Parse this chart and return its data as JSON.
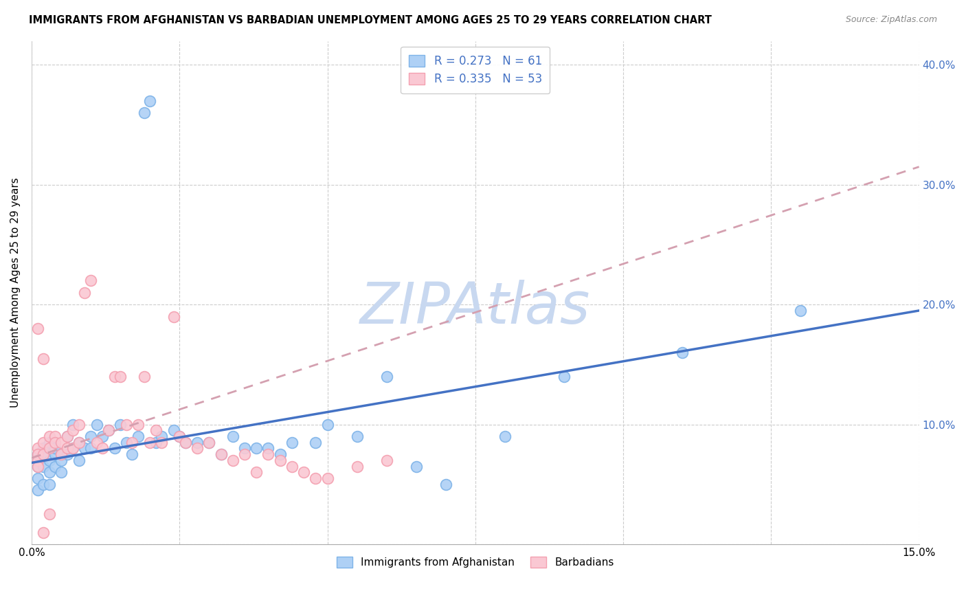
{
  "title": "IMMIGRANTS FROM AFGHANISTAN VS BARBADIAN UNEMPLOYMENT AMONG AGES 25 TO 29 YEARS CORRELATION CHART",
  "source": "Source: ZipAtlas.com",
  "ylabel": "Unemployment Among Ages 25 to 29 years",
  "xlim": [
    0.0,
    0.15
  ],
  "ylim": [
    0.0,
    0.42
  ],
  "xticks": [
    0.0,
    0.025,
    0.05,
    0.075,
    0.1,
    0.125,
    0.15
  ],
  "xtick_labels": [
    "0.0%",
    "",
    "",
    "",
    "",
    "",
    "15.0%"
  ],
  "yticks": [
    0.0,
    0.1,
    0.2,
    0.3,
    0.4
  ],
  "ytick_labels_right": [
    "",
    "10.0%",
    "20.0%",
    "30.0%",
    "40.0%"
  ],
  "blue_color": "#7EB3E8",
  "blue_fill": "#AED0F5",
  "pink_color": "#F4A0B0",
  "pink_fill": "#FAC8D3",
  "trend_blue": "#4472C4",
  "trend_pink": "#D4A0B0",
  "watermark": "ZIPAtlas",
  "watermark_color": "#C8D8F0",
  "legend_R1": "R = 0.273",
  "legend_N1": "N = 61",
  "legend_R2": "R = 0.335",
  "legend_N2": "N = 53",
  "blue_scatter_x": [
    0.001,
    0.001,
    0.001,
    0.001,
    0.002,
    0.002,
    0.002,
    0.002,
    0.003,
    0.003,
    0.003,
    0.003,
    0.004,
    0.004,
    0.004,
    0.005,
    0.005,
    0.005,
    0.006,
    0.006,
    0.007,
    0.007,
    0.008,
    0.008,
    0.009,
    0.01,
    0.01,
    0.011,
    0.012,
    0.013,
    0.014,
    0.015,
    0.016,
    0.017,
    0.018,
    0.019,
    0.02,
    0.021,
    0.022,
    0.024,
    0.025,
    0.026,
    0.028,
    0.03,
    0.032,
    0.034,
    0.036,
    0.038,
    0.04,
    0.042,
    0.044,
    0.048,
    0.05,
    0.055,
    0.06,
    0.065,
    0.07,
    0.08,
    0.09,
    0.11,
    0.13
  ],
  "blue_scatter_y": [
    0.065,
    0.075,
    0.055,
    0.045,
    0.08,
    0.065,
    0.075,
    0.05,
    0.07,
    0.085,
    0.06,
    0.05,
    0.075,
    0.065,
    0.08,
    0.075,
    0.07,
    0.06,
    0.09,
    0.075,
    0.1,
    0.08,
    0.085,
    0.07,
    0.08,
    0.09,
    0.08,
    0.1,
    0.09,
    0.095,
    0.08,
    0.1,
    0.085,
    0.075,
    0.09,
    0.36,
    0.37,
    0.085,
    0.09,
    0.095,
    0.09,
    0.085,
    0.085,
    0.085,
    0.075,
    0.09,
    0.08,
    0.08,
    0.08,
    0.075,
    0.085,
    0.085,
    0.1,
    0.09,
    0.14,
    0.065,
    0.05,
    0.09,
    0.14,
    0.16,
    0.195
  ],
  "pink_scatter_x": [
    0.001,
    0.001,
    0.001,
    0.001,
    0.001,
    0.002,
    0.002,
    0.002,
    0.002,
    0.003,
    0.003,
    0.003,
    0.004,
    0.004,
    0.005,
    0.005,
    0.006,
    0.006,
    0.007,
    0.007,
    0.008,
    0.008,
    0.009,
    0.01,
    0.011,
    0.012,
    0.013,
    0.014,
    0.015,
    0.016,
    0.017,
    0.018,
    0.019,
    0.02,
    0.021,
    0.022,
    0.024,
    0.025,
    0.026,
    0.028,
    0.03,
    0.032,
    0.034,
    0.036,
    0.038,
    0.04,
    0.042,
    0.044,
    0.046,
    0.048,
    0.05,
    0.055,
    0.06
  ],
  "pink_scatter_y": [
    0.08,
    0.075,
    0.07,
    0.065,
    0.18,
    0.085,
    0.075,
    0.155,
    0.01,
    0.09,
    0.08,
    0.025,
    0.09,
    0.085,
    0.085,
    0.075,
    0.09,
    0.08,
    0.095,
    0.08,
    0.085,
    0.1,
    0.21,
    0.22,
    0.085,
    0.08,
    0.095,
    0.14,
    0.14,
    0.1,
    0.085,
    0.1,
    0.14,
    0.085,
    0.095,
    0.085,
    0.19,
    0.09,
    0.085,
    0.08,
    0.085,
    0.075,
    0.07,
    0.075,
    0.06,
    0.075,
    0.07,
    0.065,
    0.06,
    0.055,
    0.055,
    0.065,
    0.07
  ],
  "blue_trend_x0": 0.0,
  "blue_trend_y0": 0.068,
  "blue_trend_x1": 0.15,
  "blue_trend_y1": 0.195,
  "pink_trend_x0": 0.0,
  "pink_trend_y0": 0.072,
  "pink_trend_x1": 0.15,
  "pink_trend_y1": 0.315
}
